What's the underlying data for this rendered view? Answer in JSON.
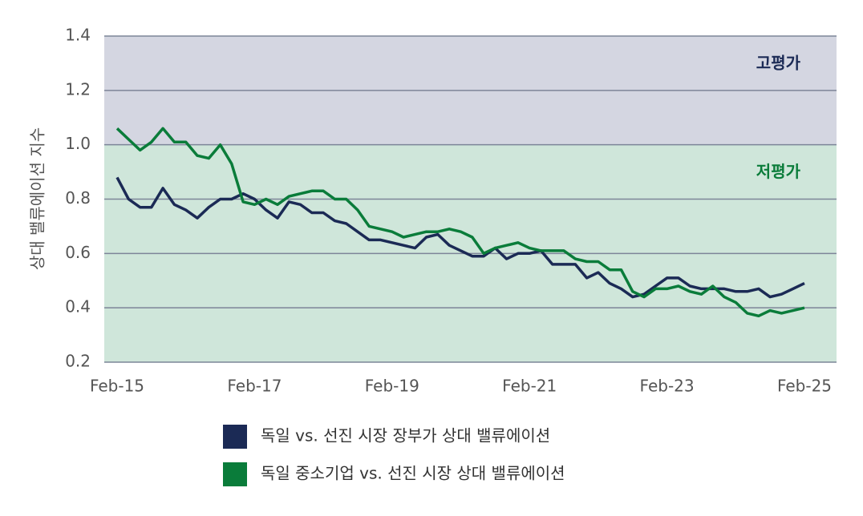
{
  "chart_data": {
    "type": "line",
    "y_label": "상대 밸류에이션 지수",
    "categories": [
      "Feb-15",
      null,
      null,
      null,
      null,
      null,
      null,
      null,
      null,
      null,
      null,
      null,
      "Feb-17",
      null,
      null,
      null,
      null,
      null,
      null,
      null,
      null,
      null,
      null,
      null,
      "Feb-19",
      null,
      null,
      null,
      null,
      null,
      null,
      null,
      null,
      null,
      null,
      null,
      "Feb-21",
      null,
      null,
      null,
      null,
      null,
      null,
      null,
      null,
      null,
      null,
      null,
      "Feb-23",
      null,
      null,
      null,
      null,
      null,
      null,
      null,
      null,
      null,
      null,
      null,
      "Feb-25"
    ],
    "series": [
      {
        "name": "독일 vs. 선진 시장 장부가 상대 밸류에이션",
        "color": "#1b2a55",
        "values": [
          0.88,
          0.8,
          0.77,
          0.77,
          0.84,
          0.78,
          0.76,
          0.73,
          0.77,
          0.8,
          0.8,
          0.82,
          0.8,
          0.76,
          0.73,
          0.79,
          0.78,
          0.75,
          0.75,
          0.72,
          0.71,
          0.68,
          0.65,
          0.65,
          0.64,
          0.63,
          0.62,
          0.66,
          0.67,
          0.63,
          0.61,
          0.59,
          0.59,
          0.62,
          0.58,
          0.6,
          0.6,
          0.61,
          0.56,
          0.56,
          0.56,
          0.51,
          0.53,
          0.49,
          0.47,
          0.44,
          0.45,
          0.48,
          0.51,
          0.51,
          0.48,
          0.47,
          0.47,
          0.47,
          0.46,
          0.46,
          0.47,
          0.44,
          0.45,
          0.47,
          0.49
        ]
      },
      {
        "name": "독일 중소기업 vs. 선진 시장 상대 밸류에이션",
        "color": "#0a7c3a",
        "values": [
          1.06,
          1.02,
          0.98,
          1.01,
          1.06,
          1.01,
          1.01,
          0.96,
          0.95,
          1.0,
          0.93,
          0.79,
          0.78,
          0.8,
          0.78,
          0.81,
          0.82,
          0.83,
          0.83,
          0.8,
          0.8,
          0.76,
          0.7,
          0.69,
          0.68,
          0.66,
          0.67,
          0.68,
          0.68,
          0.69,
          0.68,
          0.66,
          0.6,
          0.62,
          0.63,
          0.64,
          0.62,
          0.61,
          0.61,
          0.61,
          0.58,
          0.57,
          0.57,
          0.54,
          0.54,
          0.46,
          0.44,
          0.47,
          0.47,
          0.48,
          0.46,
          0.45,
          0.48,
          0.44,
          0.42,
          0.38,
          0.37,
          0.39,
          0.38,
          0.39,
          0.4
        ]
      }
    ],
    "ylim": [
      0.2,
      1.4
    ],
    "yticks": [
      0.2,
      0.4,
      0.6,
      0.8,
      {
        "value": 1,
        "label": "1.0"
      },
      1.2,
      1.4
    ],
    "grid": true,
    "bands": [
      {
        "label": "고평가",
        "from": 1,
        "to": 1.4,
        "color": "#d4d6e1",
        "label_color": "#1b2a55"
      },
      {
        "label": "저평가",
        "from": 0.2,
        "to": 1,
        "color": "#cfe6da",
        "label_color": "#0a7c3a"
      }
    ],
    "legend": "bottom"
  }
}
